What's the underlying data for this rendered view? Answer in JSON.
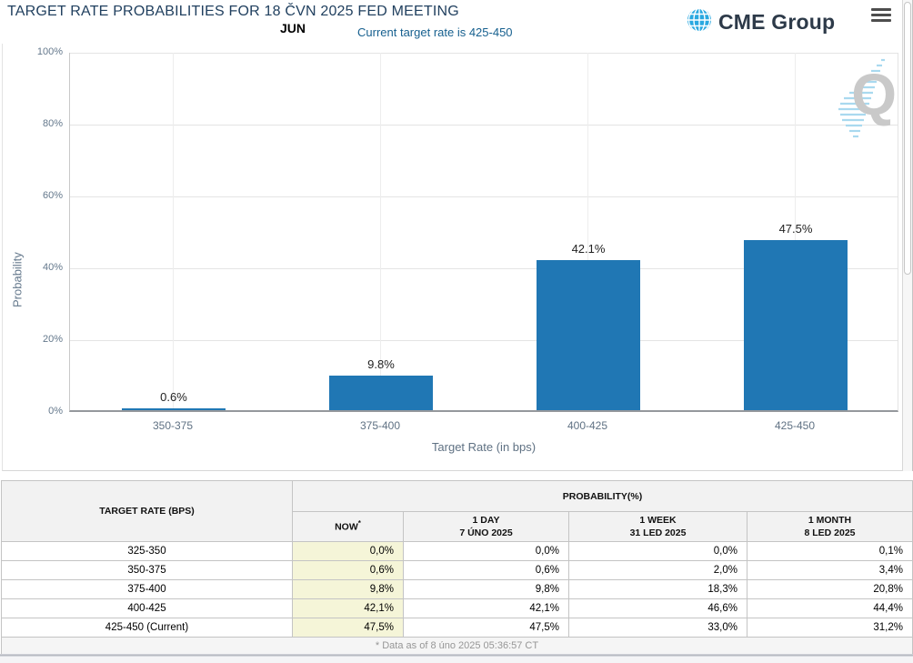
{
  "header": {
    "title": "TARGET RATE PROBABILITIES FOR 18 ČVN 2025 FED MEETING",
    "month_label": "JUN",
    "subtitle": "Current target rate is 425-450",
    "logo_text": "CME Group"
  },
  "icons": {
    "logo": "globe-icon",
    "menu": "hamburger-icon",
    "watermark": "quikstrike-q-watermark"
  },
  "colors": {
    "bar": "#2077b4",
    "title_navy": "#21405f",
    "subtitle_blue": "#17608f",
    "logo_globe_blue": "#29a8e0",
    "now_column_highlight": "#f5f5d8",
    "header_gray": "#f2f2f2"
  },
  "chart_data": {
    "type": "bar",
    "title": "TARGET RATE PROBABILITIES FOR 18 ČVN 2025 FED MEETING",
    "categories": [
      "350-375",
      "375-400",
      "400-425",
      "425-450"
    ],
    "values": [
      0.6,
      9.8,
      42.1,
      47.5
    ],
    "bar_labels": [
      "0.6%",
      "9.8%",
      "42.1%",
      "47.5%"
    ],
    "xlabel": "Target Rate (in bps)",
    "ylabel": "Probability",
    "ylim": [
      0,
      100
    ],
    "yticks": [
      "0%",
      "20%",
      "40%",
      "60%",
      "80%",
      "100%"
    ],
    "grid": true,
    "legend": "none",
    "bar_color": "#2077b4"
  },
  "table": {
    "col1_header": "TARGET RATE (BPS)",
    "group_header": "PROBABILITY(%)",
    "columns": [
      {
        "label": "NOW",
        "sup": "*",
        "sub": ""
      },
      {
        "label": "1 DAY",
        "sub": "7 ÚNO 2025"
      },
      {
        "label": "1 WEEK",
        "sub": "31 LED 2025"
      },
      {
        "label": "1 MONTH",
        "sub": "8 LED 2025"
      }
    ],
    "rows": [
      {
        "rate": "325-350",
        "now": "0,0%",
        "day": "0,0%",
        "week": "0,0%",
        "month": "0,1%"
      },
      {
        "rate": "350-375",
        "now": "0,6%",
        "day": "0,6%",
        "week": "2,0%",
        "month": "3,4%"
      },
      {
        "rate": "375-400",
        "now": "9,8%",
        "day": "9,8%",
        "week": "18,3%",
        "month": "20,8%"
      },
      {
        "rate": "400-425",
        "now": "42,1%",
        "day": "42,1%",
        "week": "46,6%",
        "month": "44,4%"
      },
      {
        "rate": "425-450 (Current)",
        "now": "47,5%",
        "day": "47,5%",
        "week": "33,0%",
        "month": "31,2%"
      }
    ],
    "footnote": "* Data as of 8 úno 2025 05:36:57 CT"
  }
}
